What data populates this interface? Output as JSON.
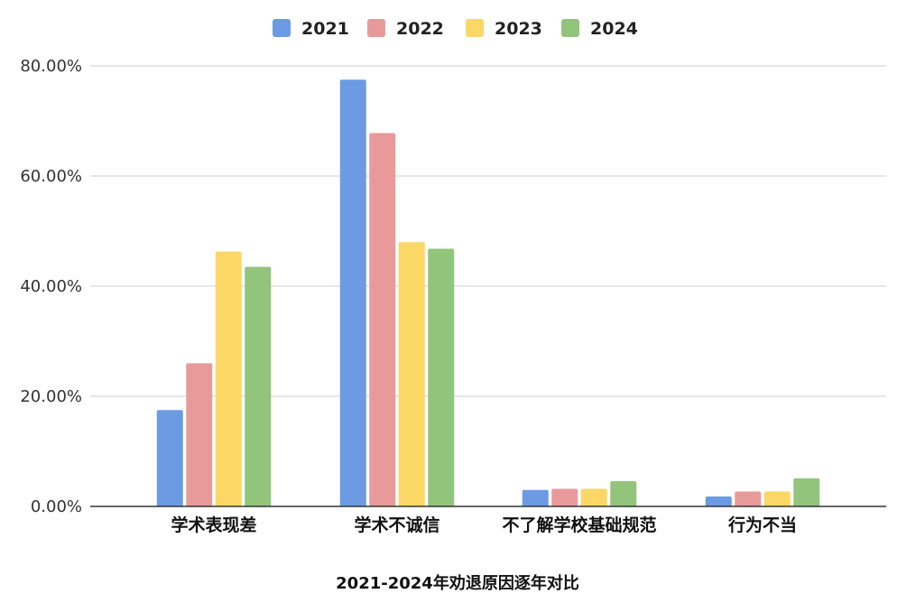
{
  "chart_data": {
    "type": "bar",
    "title": "2021-2024年劝退原因逐年对比",
    "xlabel": "",
    "ylabel": "",
    "ylim": [
      0,
      80
    ],
    "y_ticks": [
      "0.00%",
      "20.00%",
      "40.00%",
      "60.00%",
      "80.00%"
    ],
    "grid": true,
    "legend_position": "top",
    "categories": [
      "学术表现差",
      "学术不诚信",
      "不了解学校基础规范",
      "行为不当"
    ],
    "series": [
      {
        "name": "2021",
        "color": "#6c9be3",
        "values": [
          17.5,
          77.5,
          3.0,
          1.8
        ]
      },
      {
        "name": "2022",
        "color": "#e89a9a",
        "values": [
          26.0,
          67.8,
          3.2,
          2.7
        ]
      },
      {
        "name": "2023",
        "color": "#fbd766",
        "values": [
          46.3,
          48.0,
          3.2,
          2.7
        ]
      },
      {
        "name": "2024",
        "color": "#92c47c",
        "values": [
          43.5,
          46.8,
          4.6,
          5.1
        ]
      }
    ]
  }
}
